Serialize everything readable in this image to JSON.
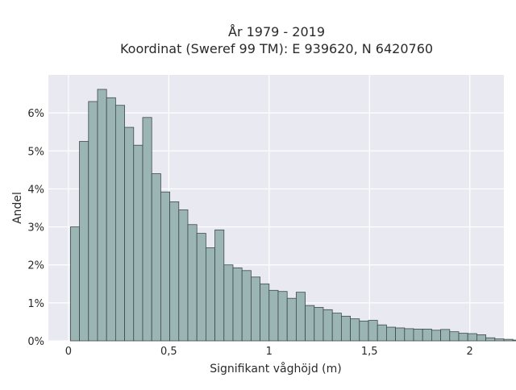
{
  "chart_data": {
    "type": "bar",
    "title": "År 1979 - 2019",
    "subtitle": "Koordinat (Sweref 99 TM): E 939620, N 6420760",
    "xlabel": "Signifikant våghöjd (m)",
    "ylabel": "Andel",
    "xlim": [
      -0.1,
      2.17
    ],
    "ylim": [
      0,
      0.07
    ],
    "x_ticks": [
      {
        "value": 0,
        "label": "0"
      },
      {
        "value": 0.5,
        "label": "0,5"
      },
      {
        "value": 1,
        "label": "1"
      },
      {
        "value": 1.5,
        "label": "1,5"
      },
      {
        "value": 2,
        "label": "2"
      }
    ],
    "y_ticks": [
      {
        "value": 0,
        "label": "0%"
      },
      {
        "value": 0.01,
        "label": "1%"
      },
      {
        "value": 0.02,
        "label": "2%"
      },
      {
        "value": 0.03,
        "label": "3%"
      },
      {
        "value": 0.04,
        "label": "4%"
      },
      {
        "value": 0.05,
        "label": "5%"
      },
      {
        "value": 0.06,
        "label": "6%"
      }
    ],
    "grid": true,
    "bin_start": 0.01,
    "bin_width": 0.045,
    "values": [
      0.03,
      0.0525,
      0.063,
      0.0662,
      0.064,
      0.062,
      0.0562,
      0.0515,
      0.0588,
      0.044,
      0.0392,
      0.0366,
      0.0345,
      0.0306,
      0.0283,
      0.0245,
      0.0292,
      0.02,
      0.0192,
      0.0185,
      0.0168,
      0.015,
      0.0133,
      0.013,
      0.0112,
      0.0128,
      0.0093,
      0.0088,
      0.0082,
      0.0073,
      0.0065,
      0.0058,
      0.0052,
      0.0054,
      0.0042,
      0.0036,
      0.0034,
      0.0032,
      0.0031,
      0.0031,
      0.0028,
      0.003,
      0.0024,
      0.002,
      0.0019,
      0.0016,
      0.0008,
      0.0005,
      0.0004,
      0.0002
    ],
    "colors": {
      "bar_fill": "#9bb5b4",
      "bar_stroke": "#3d4a49",
      "plot_bg": "#e9e9f1",
      "grid": "#ffffff"
    }
  }
}
